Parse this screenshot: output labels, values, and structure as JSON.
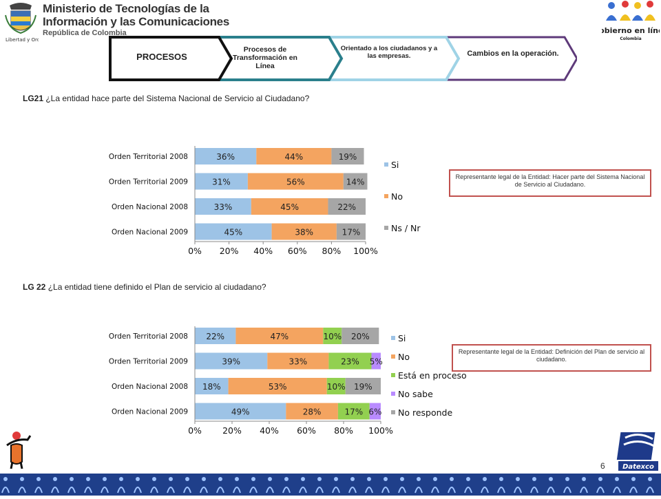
{
  "header": {
    "ministry_line1": "Ministerio de Tecnologías de la",
    "ministry_line2": "Información y las Comunicaciones",
    "ministry_line3": "República de Colombia",
    "motto": "Libertad y Orden",
    "right_logo_line1": "Gobierno en línea",
    "right_logo_line2": "Colombia"
  },
  "flow": {
    "steps": [
      {
        "label": "PROCESOS"
      },
      {
        "label": "Procesos de Transformación en Línea"
      },
      {
        "label": "Orientado a los ciudadanos y a las empresas."
      },
      {
        "label": "Cambios en la operación."
      }
    ]
  },
  "q1": {
    "code": "LG21",
    "text": " ¿La entidad hace parte del Sistema Nacional de Servicio al Ciudadano?",
    "note": "Representante legal de la Entidad: Hacer parte del Sistema Nacional de Servicio al Ciudadano."
  },
  "q2": {
    "code": "LG 22",
    "text": " ¿La entidad tiene definido el Plan de servicio al ciudadano?",
    "note": "Representante legal de la Entidad: Definición del Plan de servicio al ciudadano."
  },
  "chart_data": [
    {
      "type": "bar",
      "orientation": "horizontal",
      "stacked": true,
      "categories": [
        "Orden Territorial 2008",
        "Orden Territorial 2009",
        "Orden Nacional 2008",
        "Orden Nacional 2009"
      ],
      "series": [
        {
          "name": "Si",
          "color": "#9dc3e6",
          "values": [
            36,
            31,
            33,
            45
          ]
        },
        {
          "name": "No",
          "color": "#f4a460",
          "values": [
            44,
            56,
            45,
            38
          ]
        },
        {
          "name": "Ns / Nr",
          "color": "#a6a6a6",
          "values": [
            19,
            14,
            22,
            17
          ]
        }
      ],
      "xticks": [
        "0%",
        "20%",
        "40%",
        "60%",
        "80%",
        "100%"
      ],
      "xlim": [
        0,
        100
      ],
      "legend": "right"
    },
    {
      "type": "bar",
      "orientation": "horizontal",
      "stacked": true,
      "categories": [
        "Orden Territorial 2008",
        "Orden Territorial 2009",
        "Orden Nacional 2008",
        "Orden Nacional 2009"
      ],
      "series": [
        {
          "name": "Si",
          "color": "#9dc3e6",
          "values": [
            22,
            39,
            18,
            49
          ]
        },
        {
          "name": "No",
          "color": "#f4a460",
          "values": [
            47,
            33,
            53,
            28
          ]
        },
        {
          "name": "Está en proceso",
          "color": "#92d050",
          "values": [
            10,
            23,
            10,
            17
          ]
        },
        {
          "name": "No sabe",
          "color": "#b98bff",
          "values": [
            null,
            5,
            null,
            6
          ]
        },
        {
          "name": "No responde",
          "color": "#a6a6a6",
          "values": [
            20,
            null,
            19,
            null
          ]
        }
      ],
      "xticks": [
        "0%",
        "20%",
        "40%",
        "60%",
        "80%",
        "100%"
      ],
      "xlim": [
        0,
        100
      ],
      "legend": "right"
    }
  ],
  "page": {
    "number": "6",
    "footer_logo": "Datexco"
  }
}
